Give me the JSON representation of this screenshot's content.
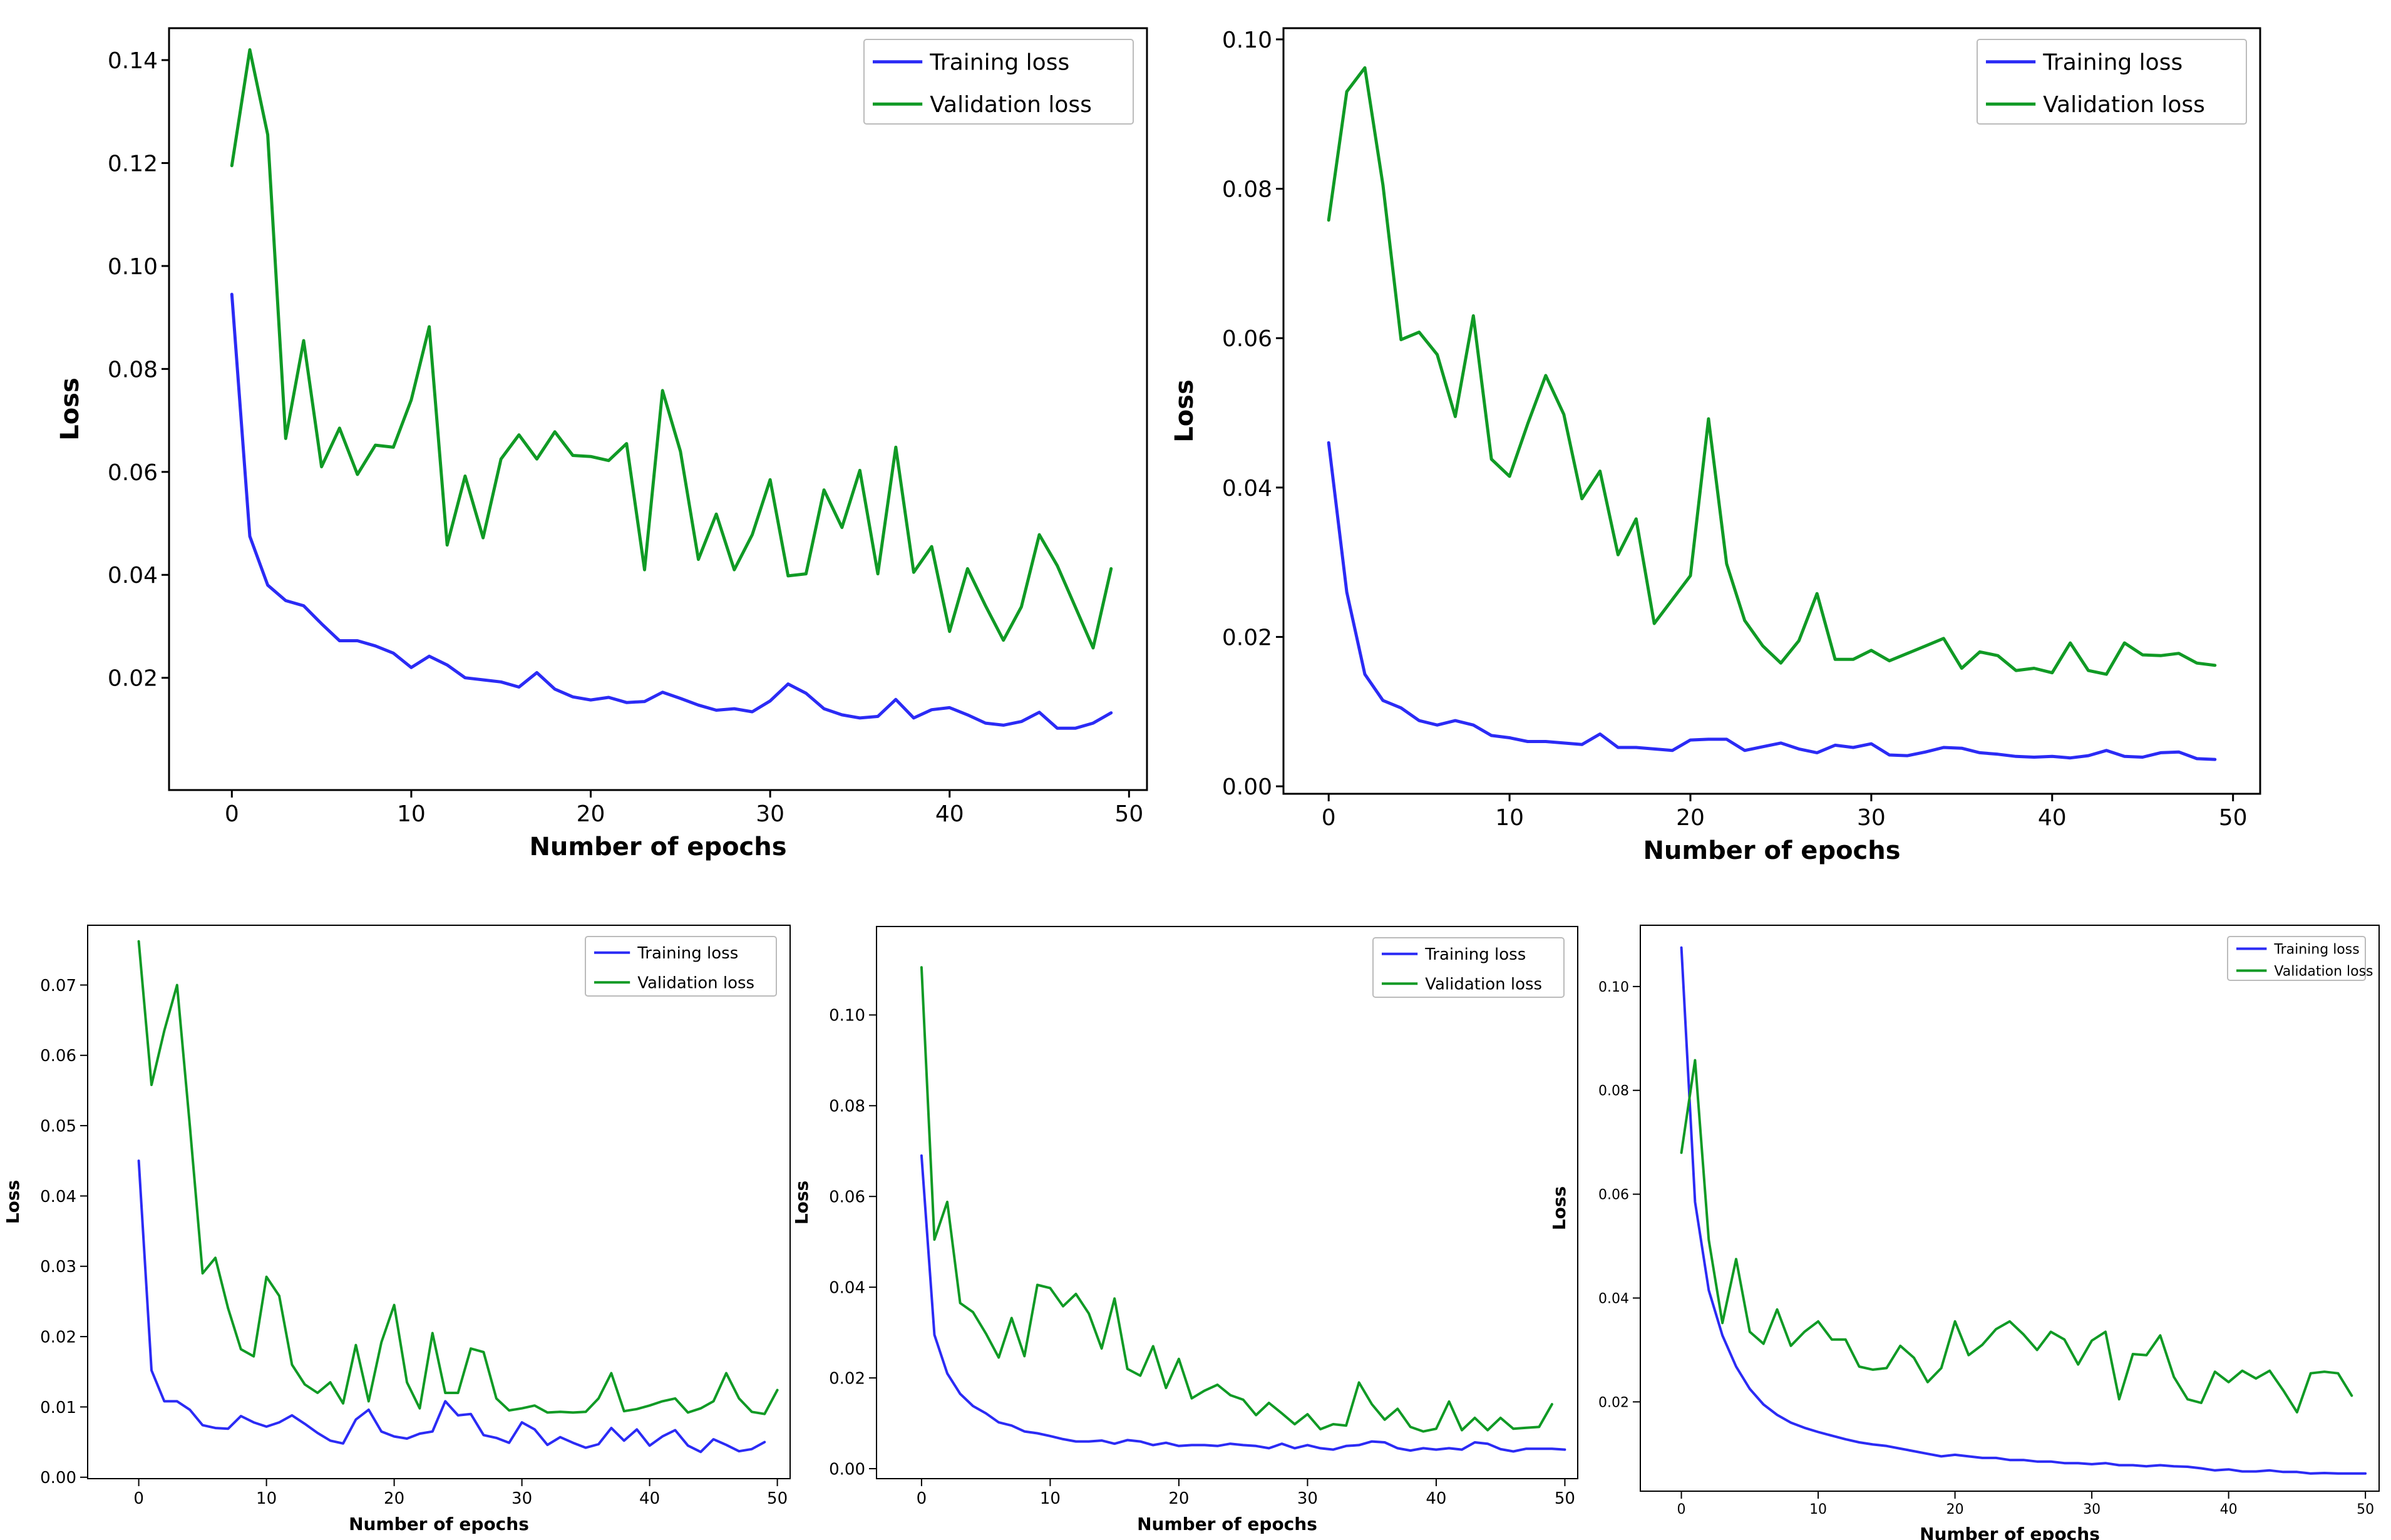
{
  "colors": {
    "training": "#2b2bf5",
    "validation": "#109a25"
  },
  "chart_data": [
    {
      "type": "line",
      "xlabel": "Number of epochs",
      "ylabel": "Loss",
      "xlim": [
        -3.5,
        51
      ],
      "ylim": [
        -0.0018,
        0.1462
      ],
      "xticks": [
        0,
        10,
        20,
        30,
        40,
        50
      ],
      "xtick_labels": [
        "0",
        "10",
        "20",
        "30",
        "40",
        "50"
      ],
      "yticks": [
        0.02,
        0.04,
        0.06,
        0.08,
        0.1,
        0.12,
        0.14
      ],
      "ytick_labels": [
        "0.02",
        "0.04",
        "0.06",
        "0.08",
        "0.10",
        "0.12",
        "0.14"
      ],
      "legend": "top-right",
      "series": [
        {
          "name": "Training loss",
          "color": "#2b2bf5",
          "values": [
            0.0945,
            0.0475,
            0.038,
            0.035,
            0.034,
            0.0305,
            0.0272,
            0.0272,
            0.0262,
            0.0248,
            0.022,
            0.0242,
            0.0225,
            0.02,
            0.0196,
            0.0192,
            0.0182,
            0.021,
            0.0178,
            0.0163,
            0.0157,
            0.0162,
            0.0152,
            0.0154,
            0.0172,
            0.016,
            0.0147,
            0.0137,
            0.014,
            0.0134,
            0.0155,
            0.0188,
            0.017,
            0.014,
            0.0128,
            0.0122,
            0.0125,
            0.0158,
            0.0122,
            0.0138,
            0.0142,
            0.0128,
            0.0112,
            0.0108,
            0.0115,
            0.0133,
            0.0102,
            0.0102,
            0.0112,
            0.0132
          ]
        },
        {
          "name": "Validation loss",
          "color": "#109a25",
          "values": [
            0.1195,
            0.142,
            0.1255,
            0.0665,
            0.0855,
            0.061,
            0.0685,
            0.0595,
            0.0652,
            0.0648,
            0.074,
            0.0882,
            0.0458,
            0.0592,
            0.0472,
            0.0625,
            0.0672,
            0.0625,
            0.0678,
            0.0632,
            0.063,
            0.0622,
            0.0655,
            0.041,
            0.0758,
            0.064,
            0.043,
            0.0518,
            0.041,
            0.0478,
            0.0585,
            0.0398,
            0.0402,
            0.0565,
            0.0492,
            0.0603,
            0.0402,
            0.0648,
            0.0405,
            0.0455,
            0.029,
            0.0412,
            0.034,
            0.0273,
            0.0338,
            0.0478,
            0.0418,
            0.0338,
            0.0258,
            0.0412
          ]
        }
      ]
    },
    {
      "type": "line",
      "xlabel": "Number of epochs",
      "ylabel": "Loss",
      "xlim": [
        -2.5,
        51.5
      ],
      "ylim": [
        -0.001,
        0.1015
      ],
      "xticks": [
        0,
        10,
        20,
        30,
        40,
        50
      ],
      "xtick_labels": [
        "0",
        "10",
        "20",
        "30",
        "40",
        "50"
      ],
      "yticks": [
        0.0,
        0.02,
        0.04,
        0.06,
        0.08,
        0.1
      ],
      "ytick_labels": [
        "0.00",
        "0.02",
        "0.04",
        "0.06",
        "0.08",
        "0.10"
      ],
      "legend": "top-right",
      "series": [
        {
          "name": "Training loss",
          "color": "#2b2bf5",
          "values": [
            0.046,
            0.026,
            0.015,
            0.0115,
            0.0105,
            0.0088,
            0.0082,
            0.0088,
            0.0082,
            0.0068,
            0.0065,
            0.006,
            0.006,
            0.0058,
            0.0056,
            0.007,
            0.0052,
            0.0052,
            0.005,
            0.0048,
            0.0062,
            0.0063,
            0.0063,
            0.0048,
            0.0053,
            0.0058,
            0.005,
            0.0045,
            0.0055,
            0.0052,
            0.0057,
            0.0042,
            0.0041,
            0.0046,
            0.0052,
            0.0051,
            0.0045,
            0.0043,
            0.004,
            0.0039,
            0.004,
            0.0038,
            0.0041,
            0.0048,
            0.004,
            0.0039,
            0.0045,
            0.0046,
            0.0037,
            0.0036
          ]
        },
        {
          "name": "Validation loss",
          "color": "#109a25",
          "values": [
            0.0758,
            0.093,
            0.0962,
            0.0805,
            0.0598,
            0.0608,
            0.0578,
            0.0495,
            0.063,
            0.0438,
            0.0415,
            0.0485,
            0.055,
            0.0498,
            0.0385,
            0.0422,
            0.031,
            0.0358,
            0.0218,
            0.025,
            0.0282,
            0.0492,
            0.0298,
            0.0222,
            0.0188,
            0.0165,
            0.0195,
            0.0258,
            0.017,
            0.017,
            0.0182,
            0.0168,
            0.0178,
            0.0188,
            0.0198,
            0.0158,
            0.018,
            0.0175,
            0.0155,
            0.0158,
            0.0152,
            0.0192,
            0.0155,
            0.015,
            0.0192,
            0.0176,
            0.0175,
            0.0178,
            0.0165,
            0.0162
          ]
        }
      ]
    },
    {
      "type": "line",
      "xlabel": "Number of epochs",
      "ylabel": "Loss",
      "xlim": [
        -4,
        51
      ],
      "ylim": [
        -0.0002,
        0.0785
      ],
      "xticks": [
        0,
        10,
        20,
        30,
        40,
        50
      ],
      "xtick_labels": [
        "0",
        "10",
        "20",
        "30",
        "40",
        "50"
      ],
      "yticks": [
        0.0,
        0.01,
        0.02,
        0.03,
        0.04,
        0.05,
        0.06,
        0.07
      ],
      "ytick_labels": [
        "0.00",
        "0.01",
        "0.02",
        "0.03",
        "0.04",
        "0.05",
        "0.06",
        "0.07"
      ],
      "legend": "top-right",
      "series": [
        {
          "name": "Training loss",
          "color": "#2b2bf5",
          "values": [
            0.045,
            0.0152,
            0.0108,
            0.0108,
            0.0096,
            0.0074,
            0.007,
            0.0069,
            0.0087,
            0.0078,
            0.0072,
            0.0078,
            0.0088,
            0.0076,
            0.0063,
            0.0052,
            0.0048,
            0.0082,
            0.0096,
            0.0065,
            0.0058,
            0.0055,
            0.0062,
            0.0065,
            0.0108,
            0.0088,
            0.009,
            0.006,
            0.0056,
            0.0049,
            0.0078,
            0.0068,
            0.0046,
            0.0057,
            0.0049,
            0.0042,
            0.0047,
            0.007,
            0.0052,
            0.0068,
            0.0045,
            0.0058,
            0.0067,
            0.0045,
            0.0036,
            0.0054,
            0.0046,
            0.0037,
            0.004,
            0.005
          ]
        },
        {
          "name": "Validation loss",
          "color": "#109a25",
          "values": [
            0.0762,
            0.0558,
            0.0635,
            0.07,
            0.05,
            0.029,
            0.0312,
            0.024,
            0.0182,
            0.0172,
            0.0285,
            0.0258,
            0.016,
            0.0132,
            0.012,
            0.0135,
            0.0105,
            0.0188,
            0.0108,
            0.0192,
            0.0245,
            0.0135,
            0.0098,
            0.0205,
            0.012,
            0.012,
            0.0183,
            0.0178,
            0.0112,
            0.0095,
            0.0098,
            0.0102,
            0.0092,
            0.0093,
            0.0092,
            0.0093,
            0.0112,
            0.0148,
            0.0094,
            0.0097,
            0.0102,
            0.0108,
            0.0112,
            0.0092,
            0.0098,
            0.0108,
            0.0148,
            0.0112,
            0.0093,
            0.009,
            0.0124
          ]
        }
      ]
    },
    {
      "type": "line",
      "xlabel": "Number of epochs",
      "ylabel": "Loss",
      "xlim": [
        -3.5,
        51
      ],
      "ylim": [
        -0.0022,
        0.1195
      ],
      "xticks": [
        0,
        10,
        20,
        30,
        40,
        50
      ],
      "xtick_labels": [
        "0",
        "10",
        "20",
        "30",
        "40",
        "50"
      ],
      "yticks": [
        0.0,
        0.02,
        0.04,
        0.06,
        0.08,
        0.1
      ],
      "ytick_labels": [
        "0.00",
        "0.02",
        "0.04",
        "0.06",
        "0.08",
        "0.10"
      ],
      "legend": "top-right",
      "series": [
        {
          "name": "Training loss",
          "color": "#2b2bf5",
          "values": [
            0.069,
            0.0295,
            0.021,
            0.0165,
            0.0138,
            0.0122,
            0.0102,
            0.0095,
            0.0082,
            0.0078,
            0.0072,
            0.0065,
            0.006,
            0.006,
            0.0062,
            0.0055,
            0.0063,
            0.006,
            0.0052,
            0.0057,
            0.005,
            0.0052,
            0.0052,
            0.005,
            0.0055,
            0.0052,
            0.005,
            0.0045,
            0.0055,
            0.0045,
            0.0052,
            0.0045,
            0.0042,
            0.005,
            0.0052,
            0.006,
            0.0058,
            0.0045,
            0.004,
            0.0045,
            0.0042,
            0.0045,
            0.0042,
            0.0058,
            0.0055,
            0.0043,
            0.0038,
            0.0044,
            0.0044,
            0.0044,
            0.0042
          ]
        },
        {
          "name": "Validation loss",
          "color": "#109a25",
          "values": [
            0.1105,
            0.0505,
            0.0588,
            0.0365,
            0.0345,
            0.0298,
            0.0245,
            0.0332,
            0.0248,
            0.0405,
            0.0398,
            0.0358,
            0.0385,
            0.0342,
            0.0265,
            0.0375,
            0.022,
            0.0205,
            0.027,
            0.0178,
            0.0242,
            0.0155,
            0.0172,
            0.0185,
            0.0162,
            0.0152,
            0.0118,
            0.0145,
            0.0122,
            0.0098,
            0.012,
            0.0087,
            0.0098,
            0.0095,
            0.019,
            0.0142,
            0.0108,
            0.0132,
            0.0092,
            0.0082,
            0.0088,
            0.0148,
            0.0085,
            0.0112,
            0.0085,
            0.0112,
            0.0088,
            0.009,
            0.0092,
            0.0142
          ]
        }
      ]
    },
    {
      "type": "line",
      "xlabel": "Number of epochs",
      "ylabel": "Loss",
      "xlim": [
        -3,
        51
      ],
      "ylim": [
        0.0028,
        0.1118
      ],
      "xticks": [
        0,
        10,
        20,
        30,
        40,
        50
      ],
      "xtick_labels": [
        "0",
        "10",
        "20",
        "30",
        "40",
        "50"
      ],
      "yticks": [
        0.02,
        0.04,
        0.06,
        0.08,
        0.1
      ],
      "ytick_labels": [
        "0.02",
        "0.04",
        "0.06",
        "0.08",
        "0.10"
      ],
      "legend": "top-right",
      "series": [
        {
          "name": "Training loss",
          "color": "#2b2bf5",
          "values": [
            0.1075,
            0.0585,
            0.0415,
            0.0328,
            0.0268,
            0.0225,
            0.0195,
            0.0175,
            0.016,
            0.015,
            0.0142,
            0.0135,
            0.0128,
            0.0122,
            0.0118,
            0.0115,
            0.011,
            0.0105,
            0.01,
            0.0095,
            0.0098,
            0.0095,
            0.0092,
            0.0092,
            0.0088,
            0.0088,
            0.0085,
            0.0085,
            0.0082,
            0.0082,
            0.008,
            0.0082,
            0.0078,
            0.0078,
            0.0076,
            0.0078,
            0.0076,
            0.0075,
            0.0072,
            0.0068,
            0.007,
            0.0066,
            0.0066,
            0.0068,
            0.0065,
            0.0065,
            0.0062,
            0.0063,
            0.0062,
            0.0062,
            0.0062
          ]
        },
        {
          "name": "Validation loss",
          "color": "#109a25",
          "values": [
            0.068,
            0.0858,
            0.0512,
            0.0352,
            0.0475,
            0.0335,
            0.0312,
            0.0378,
            0.0308,
            0.0335,
            0.0355,
            0.032,
            0.032,
            0.0268,
            0.0262,
            0.0265,
            0.0308,
            0.0285,
            0.0238,
            0.0265,
            0.0355,
            0.029,
            0.031,
            0.034,
            0.0355,
            0.033,
            0.03,
            0.0335,
            0.032,
            0.0272,
            0.0318,
            0.0335,
            0.0205,
            0.0292,
            0.029,
            0.0328,
            0.0248,
            0.0205,
            0.0198,
            0.0258,
            0.0238,
            0.026,
            0.0245,
            0.026,
            0.0222,
            0.018,
            0.0255,
            0.0258,
            0.0255,
            0.0212
          ]
        }
      ]
    }
  ]
}
